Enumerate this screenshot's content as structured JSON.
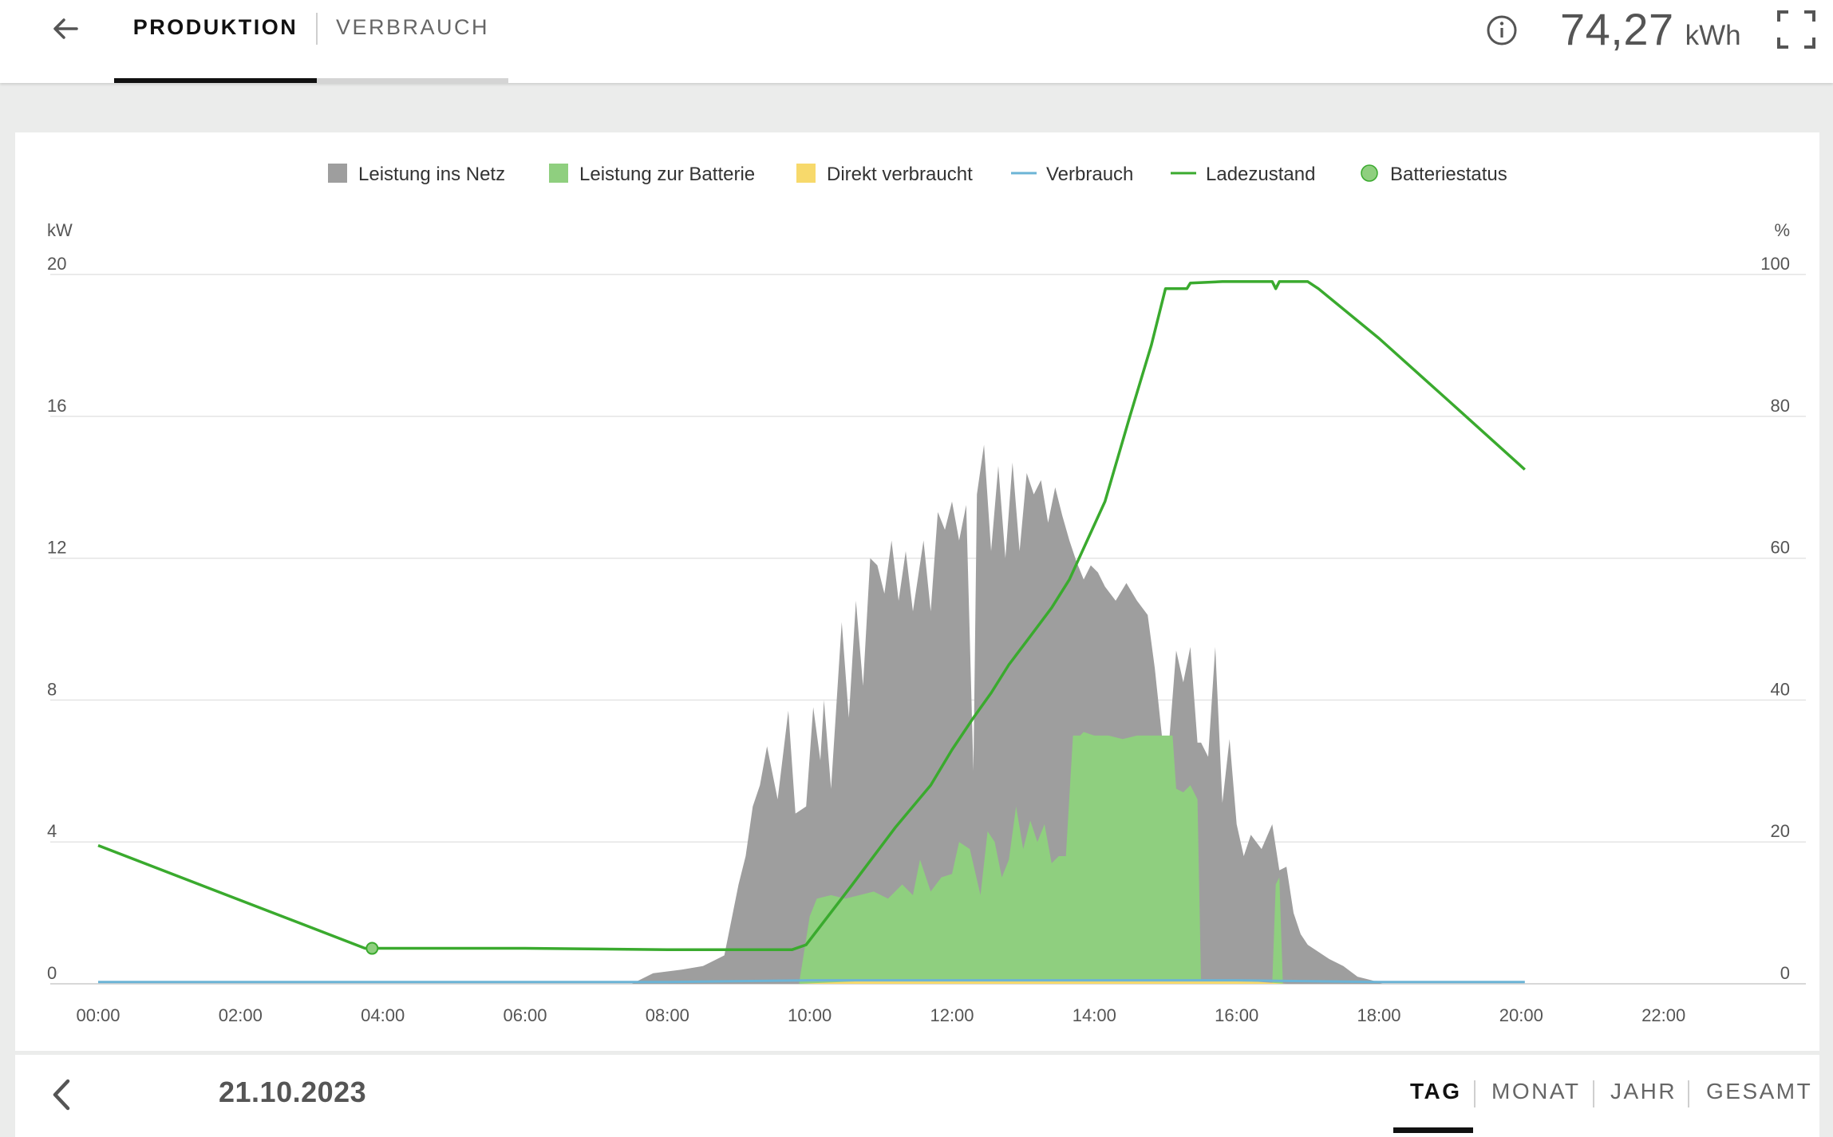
{
  "header": {
    "tabs": [
      {
        "label": "PRODUKTION",
        "active": true
      },
      {
        "label": "VERBRAUCH",
        "active": false
      }
    ],
    "total_value": "74,27",
    "total_unit": "kWh",
    "icons": {
      "back": "arrow-left-icon",
      "info": "info-circle-icon",
      "fullscreen": "fullscreen-icon"
    }
  },
  "chart": {
    "left_unit": "kW",
    "right_unit": "%",
    "left_ticks": [
      "0",
      "4",
      "8",
      "12",
      "16",
      "20"
    ],
    "right_ticks": [
      "0",
      "20",
      "40",
      "60",
      "80",
      "100"
    ],
    "x_ticks": [
      "00:00",
      "02:00",
      "04:00",
      "06:00",
      "08:00",
      "10:00",
      "12:00",
      "14:00",
      "16:00",
      "18:00",
      "20:00",
      "22:00"
    ],
    "legend": [
      {
        "label": "Leistung ins Netz",
        "marker": "square",
        "color": "#9e9e9e"
      },
      {
        "label": "Leistung zur Batterie",
        "marker": "square",
        "color": "#8fcf7f"
      },
      {
        "label": "Direkt verbraucht",
        "marker": "square",
        "color": "#f7d96b"
      },
      {
        "label": "Verbrauch",
        "marker": "line",
        "color": "#6cb4d6"
      },
      {
        "label": "Ladezustand",
        "marker": "line",
        "color": "#3aaa2e"
      },
      {
        "label": "Batteriestatus",
        "marker": "circle",
        "color": "#8fcf7f"
      }
    ]
  },
  "chart_data": {
    "type": "area",
    "ylabel_left": "kW",
    "ylabel_right": "%",
    "ylim_left": [
      0,
      20
    ],
    "ylim_right": [
      0,
      100
    ],
    "xlim_hours": [
      0,
      24
    ],
    "legend_position": "top",
    "grid": true,
    "series": [
      {
        "name": "Leistung ins Netz",
        "kind": "stacked-area",
        "color": "#9e9e9e",
        "x": [
          7.5,
          7.8,
          8.2,
          8.5,
          8.8,
          9.0,
          9.1,
          9.2,
          9.3,
          9.4,
          9.55,
          9.7,
          9.8,
          9.95,
          10.05,
          10.15,
          10.2,
          10.3,
          10.45,
          10.55,
          10.65,
          10.75,
          10.85,
          10.95,
          11.05,
          11.15,
          11.25,
          11.35,
          11.45,
          11.6,
          11.7,
          11.8,
          11.9,
          12.0,
          12.1,
          12.2,
          12.3,
          12.35,
          12.45,
          12.55,
          12.65,
          12.75,
          12.85,
          12.95,
          13.05,
          13.15,
          13.25,
          13.35,
          13.45,
          13.55,
          13.65,
          13.75,
          13.85,
          13.95,
          14.05,
          14.15,
          14.3,
          14.45,
          14.6,
          14.75,
          14.85,
          14.95,
          15.05,
          15.15,
          15.25,
          15.35,
          15.45,
          15.5,
          15.6,
          15.7,
          15.8,
          15.9,
          16.0,
          16.1,
          16.2,
          16.35,
          16.5,
          16.6,
          16.7,
          16.8,
          16.9,
          17.0,
          17.15,
          17.3,
          17.5,
          17.7,
          17.9,
          18.05
        ],
        "y": [
          0,
          0.3,
          0.4,
          0.5,
          0.8,
          2.8,
          3.6,
          5.0,
          5.6,
          6.7,
          5.2,
          7.7,
          4.8,
          5.0,
          7.8,
          6.3,
          8.0,
          5.5,
          10.2,
          7.5,
          10.8,
          8.4,
          12.0,
          11.8,
          11.0,
          12.5,
          10.8,
          12.2,
          10.5,
          12.5,
          10.5,
          13.3,
          12.8,
          13.6,
          12.5,
          13.5,
          6.0,
          13.8,
          15.2,
          12.2,
          14.6,
          12.0,
          14.7,
          12.2,
          14.4,
          13.8,
          14.2,
          13.0,
          14.0,
          13.2,
          12.5,
          11.9,
          11.4,
          11.8,
          11.6,
          11.2,
          10.8,
          11.3,
          10.8,
          10.4,
          8.9,
          7.0,
          6.8,
          9.4,
          8.5,
          9.5,
          6.8,
          6.8,
          6.4,
          9.5,
          5.1,
          6.9,
          4.5,
          3.6,
          4.2,
          3.8,
          4.5,
          3.2,
          3.3,
          2.0,
          1.4,
          1.1,
          0.9,
          0.7,
          0.5,
          0.2,
          0.1,
          0
        ]
      },
      {
        "name": "Leistung zur Batterie",
        "kind": "stacked-area",
        "color": "#8fcf7f",
        "x": [
          9.85,
          10.0,
          10.1,
          10.3,
          10.5,
          10.7,
          10.9,
          11.1,
          11.3,
          11.45,
          11.55,
          11.7,
          11.85,
          12.0,
          12.1,
          12.25,
          12.4,
          12.5,
          12.6,
          12.7,
          12.8,
          12.9,
          13.0,
          13.1,
          13.2,
          13.3,
          13.4,
          13.5,
          13.6,
          13.7,
          13.8,
          13.85,
          14.0,
          14.2,
          14.4,
          14.6,
          14.8,
          15.0,
          15.1,
          15.15,
          15.25,
          15.35,
          15.45,
          15.5,
          15.55,
          15.6,
          16.5,
          16.55,
          16.6,
          16.65,
          16.7
        ],
        "y": [
          0,
          1.9,
          2.4,
          2.5,
          2.4,
          2.5,
          2.6,
          2.4,
          2.8,
          2.5,
          3.5,
          2.6,
          3.0,
          3.1,
          4.0,
          3.8,
          2.5,
          4.3,
          4.0,
          3.0,
          3.5,
          5.0,
          3.8,
          4.6,
          4.0,
          4.5,
          3.4,
          3.6,
          3.6,
          7.0,
          7.0,
          7.1,
          7.0,
          7.0,
          6.9,
          7.0,
          7.0,
          7.0,
          7.0,
          5.5,
          5.4,
          5.6,
          5.2,
          0,
          0,
          0,
          0,
          2.8,
          3.0,
          0,
          0
        ]
      },
      {
        "name": "Direkt verbraucht",
        "kind": "stacked-area",
        "color": "#f7d96b",
        "x": [
          9.85,
          11.0,
          12.0,
          13.0,
          14.0,
          15.0,
          16.0,
          16.7
        ],
        "y": [
          0,
          0.1,
          0.1,
          0.1,
          0.1,
          0.1,
          0.1,
          0
        ]
      },
      {
        "name": "Verbrauch",
        "kind": "line",
        "color": "#6cb4d6",
        "x": [
          0,
          2,
          4,
          6,
          8,
          10,
          12,
          14,
          16,
          18,
          20.05
        ],
        "y": [
          0.05,
          0.05,
          0.05,
          0.05,
          0.05,
          0.1,
          0.1,
          0.1,
          0.1,
          0.05,
          0.05
        ]
      },
      {
        "name": "Ladezustand",
        "kind": "line",
        "axis": "right",
        "color": "#3aaa2e",
        "x": [
          0,
          3.75,
          6.0,
          8.0,
          9.0,
          9.75,
          9.95,
          10.6,
          11.2,
          11.7,
          12.0,
          12.3,
          12.55,
          12.8,
          13.1,
          13.4,
          13.65,
          13.9,
          14.15,
          14.5,
          14.8,
          15.0,
          15.3,
          15.35,
          15.8,
          16.5,
          16.55,
          16.6,
          16.65,
          17.0,
          17.15,
          18.0,
          19.0,
          20.05
        ],
        "y": [
          19.5,
          5,
          5,
          4.8,
          4.8,
          4.8,
          5.5,
          14.0,
          22.0,
          28.0,
          33.0,
          37.5,
          41.0,
          45.0,
          49.0,
          53.0,
          57.0,
          62.5,
          68.0,
          80.0,
          90.0,
          98.0,
          98.0,
          98.8,
          99.0,
          99.0,
          98.0,
          99.0,
          99.0,
          99.0,
          98.0,
          91.0,
          82.0,
          72.5
        ]
      },
      {
        "name": "Batteriestatus",
        "kind": "point",
        "axis": "right",
        "color": "#8fcf7f",
        "x": [
          3.85
        ],
        "y": [
          5
        ]
      }
    ]
  },
  "footer": {
    "date": "21.10.2023",
    "ranges": [
      {
        "label": "TAG",
        "active": true
      },
      {
        "label": "MONAT",
        "active": false
      },
      {
        "label": "JAHR",
        "active": false
      },
      {
        "label": "GESAMT",
        "active": false
      }
    ]
  }
}
